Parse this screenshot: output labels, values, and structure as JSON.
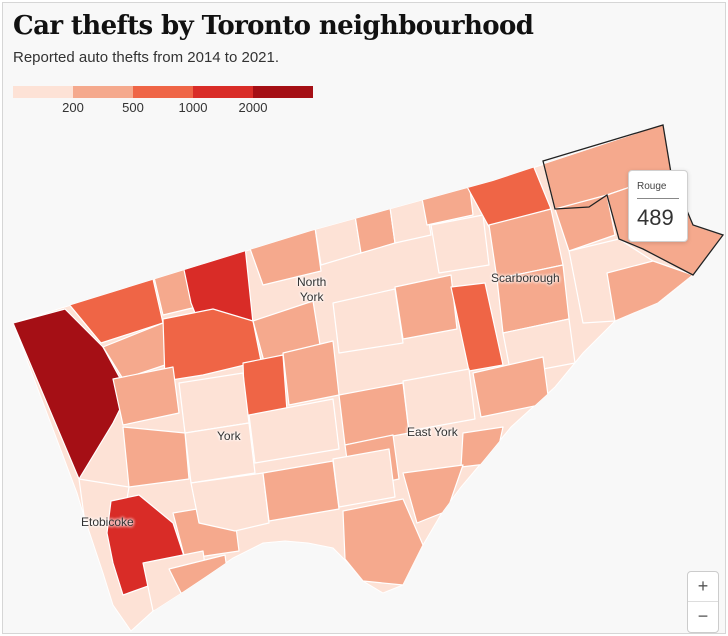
{
  "header": {
    "title": "Car thefts by Toronto neighbourhood",
    "subtitle": "Reported auto thefts from 2014 to 2021."
  },
  "legend": {
    "colors": [
      "#fde2d6",
      "#f5a98d",
      "#ef6546",
      "#d92c27",
      "#a50f15"
    ],
    "labels": [
      "200",
      "500",
      "1000",
      "2000"
    ]
  },
  "map_labels": {
    "north_york": "North\nYork",
    "scarborough": "Scarborough",
    "york": "York",
    "east_york": "East York",
    "etobicoke": "Etobicoke"
  },
  "tooltip": {
    "name": "Rouge",
    "value": "489"
  },
  "zoom": {
    "in_label": "+",
    "out_label": "−"
  }
}
